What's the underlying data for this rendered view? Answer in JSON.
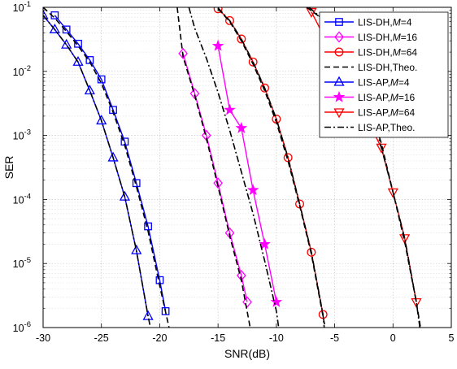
{
  "chart_data": {
    "type": "line",
    "title": "",
    "xlabel": "SNR(dB)",
    "ylabel": "SER",
    "xlim": [
      -30,
      5
    ],
    "ylim": [
      1e-06,
      0.1
    ],
    "yscale": "log",
    "grid": true,
    "minor_grid": true,
    "legend_position": "top-right",
    "xticks": [
      {
        "v": -30,
        "label": "-30"
      },
      {
        "v": -25,
        "label": "-25"
      },
      {
        "v": -20,
        "label": "-20"
      },
      {
        "v": -15,
        "label": "-15"
      },
      {
        "v": -10,
        "label": "-10"
      },
      {
        "v": -5,
        "label": "-5"
      },
      {
        "v": 0,
        "label": "0"
      },
      {
        "v": 5,
        "label": "5"
      }
    ],
    "yticks": [
      {
        "exp": -6,
        "base": "10",
        "power": "-6"
      },
      {
        "exp": -5,
        "base": "10",
        "power": "-5"
      },
      {
        "exp": -4,
        "base": "10",
        "power": "-4"
      },
      {
        "exp": -3,
        "base": "10",
        "power": "-3"
      },
      {
        "exp": -2,
        "base": "10",
        "power": "-2"
      },
      {
        "exp": -1,
        "base": "10",
        "power": "-1"
      }
    ],
    "series": [
      {
        "label_prefix": "LIS-DH,",
        "label_var": "M",
        "label_suffix": "=4",
        "kind": "sim",
        "marker": "square",
        "color": "#0000ff",
        "x": [
          -29,
          -28,
          -27,
          -26,
          -25,
          -24,
          -23,
          -22,
          -21,
          -20,
          -19.5
        ],
        "y": [
          0.075,
          0.045,
          0.027,
          0.015,
          0.0075,
          0.0025,
          0.0008,
          0.00018,
          3.8e-05,
          5.5e-06,
          1.8e-06
        ]
      },
      {
        "label_prefix": "LIS-DH,",
        "label_var": "M",
        "label_suffix": "=16",
        "kind": "sim",
        "marker": "diamond",
        "color": "#ff00ff",
        "x": [
          -18,
          -17,
          -16,
          -15,
          -14,
          -13,
          -12.5
        ],
        "y": [
          0.019,
          0.0045,
          0.001,
          0.00018,
          3e-05,
          6.5e-06,
          2.5e-06
        ]
      },
      {
        "label_prefix": "LIS-DH,",
        "label_var": "M",
        "label_suffix": "=64",
        "kind": "sim",
        "marker": "circle",
        "color": "#ff0000",
        "x": [
          -15,
          -14,
          -13,
          -12,
          -11,
          -10,
          -9,
          -8,
          -7,
          -6
        ],
        "y": [
          0.095,
          0.062,
          0.032,
          0.014,
          0.0055,
          0.0018,
          0.00045,
          8.5e-05,
          1.5e-05,
          1.6e-06
        ]
      },
      {
        "label_prefix": "LIS-DH,Theo.",
        "label_var": "",
        "label_suffix": "",
        "kind": "theo",
        "linestyle": "dashed",
        "color": "#000000",
        "segments": [
          {
            "x": [
              -30,
              -29,
              -28,
              -27,
              -26,
              -25,
              -24,
              -23,
              -22,
              -21,
              -20,
              -19.2
            ],
            "y": [
              0.1,
              0.068,
              0.042,
              0.025,
              0.014,
              0.0065,
              0.0023,
              0.0007,
              0.00016,
              3.2e-05,
              4.5e-06,
              1e-06
            ]
          },
          {
            "x": [
              -18.5,
              -18,
              -17,
              -16,
              -15,
              -14,
              -13,
              -12.2
            ],
            "y": [
              0.1,
              0.017,
              0.0042,
              0.0009,
              0.00016,
              2.7e-05,
              5.5e-06,
              9e-07
            ]
          },
          {
            "x": [
              -15,
              -14,
              -13,
              -12,
              -11,
              -10,
              -9,
              -8,
              -7,
              -6,
              -5.5
            ],
            "y": [
              0.095,
              0.06,
              0.03,
              0.013,
              0.005,
              0.0016,
              0.0004,
              8e-05,
              1.4e-05,
              1.5e-06,
              5e-07
            ]
          },
          {
            "x": [
              -7.4,
              -6,
              -5,
              -4,
              -3,
              -2,
              -1,
              0,
              1,
              2,
              2.4
            ],
            "y": [
              0.1,
              0.065,
              0.035,
              0.018,
              0.008,
              0.003,
              0.00075,
              0.00013,
              2.2e-05,
              2.5e-06,
              9e-07
            ]
          }
        ]
      },
      {
        "label_prefix": "LIS-AP,",
        "label_var": "M",
        "label_suffix": "=4",
        "kind": "sim",
        "marker": "triangle-up",
        "color": "#0000ff",
        "x": [
          -30,
          -29,
          -28,
          -27,
          -26,
          -25,
          -24,
          -23,
          -22,
          -21
        ],
        "y": [
          0.075,
          0.045,
          0.026,
          0.014,
          0.005,
          0.0017,
          0.00045,
          0.00011,
          1.6e-05,
          1.5e-06
        ]
      },
      {
        "label_prefix": "LIS-AP,",
        "label_var": "M",
        "label_suffix": "=16",
        "kind": "sim",
        "marker": "star",
        "color": "#ff00ff",
        "x": [
          -15,
          -14,
          -13,
          -12,
          -11,
          -10
        ],
        "y": [
          0.025,
          0.0025,
          0.0013,
          0.00014,
          2e-05,
          2.5e-06
        ]
      },
      {
        "label_prefix": "LIS-AP,",
        "label_var": "M",
        "label_suffix": "=64",
        "kind": "sim",
        "marker": "triangle-down",
        "color": "#ff0000",
        "x": [
          -7,
          -1,
          0,
          1,
          2
        ],
        "y": [
          0.085,
          0.00065,
          0.00013,
          2.5e-05,
          2.5e-06
        ]
      },
      {
        "label_prefix": "LIS-AP,Theo.",
        "label_var": "",
        "label_suffix": "",
        "kind": "theo",
        "linestyle": "dashdot",
        "color": "#000000",
        "segments": [
          {
            "x": [
              -30,
              -29,
              -28,
              -27,
              -26,
              -25,
              -24,
              -23,
              -22,
              -21,
              -20.8
            ],
            "y": [
              0.075,
              0.045,
              0.026,
              0.014,
              0.005,
              0.0017,
              0.00045,
              0.00011,
              1.6e-05,
              1.5e-06,
              1e-06
            ]
          },
          {
            "x": [
              -17.5,
              -17,
              -16,
              -15,
              -14,
              -13,
              -12,
              -11,
              -10,
              -9.8
            ],
            "y": [
              0.1,
              0.047,
              0.016,
              0.0047,
              0.0012,
              0.00027,
              6e-05,
              1.1e-05,
              1.8e-06,
              1e-06
            ]
          },
          {
            "x": [
              -15,
              -14,
              -13,
              -12,
              -11,
              -10,
              -9,
              -8,
              -7,
              -6,
              -5.9
            ],
            "y": [
              0.098,
              0.062,
              0.032,
              0.014,
              0.0055,
              0.0018,
              0.00045,
              8.5e-05,
              1.5e-05,
              1.6e-06,
              1e-06
            ]
          },
          {
            "x": [
              -7.2,
              -6,
              -5,
              -4,
              -3,
              -2,
              -1,
              0,
              1,
              2,
              2.3
            ],
            "y": [
              0.1,
              0.065,
              0.035,
              0.018,
              0.008,
              0.003,
              0.00065,
              0.00013,
              2.5e-05,
              2.5e-06,
              1e-06
            ]
          }
        ]
      }
    ]
  }
}
